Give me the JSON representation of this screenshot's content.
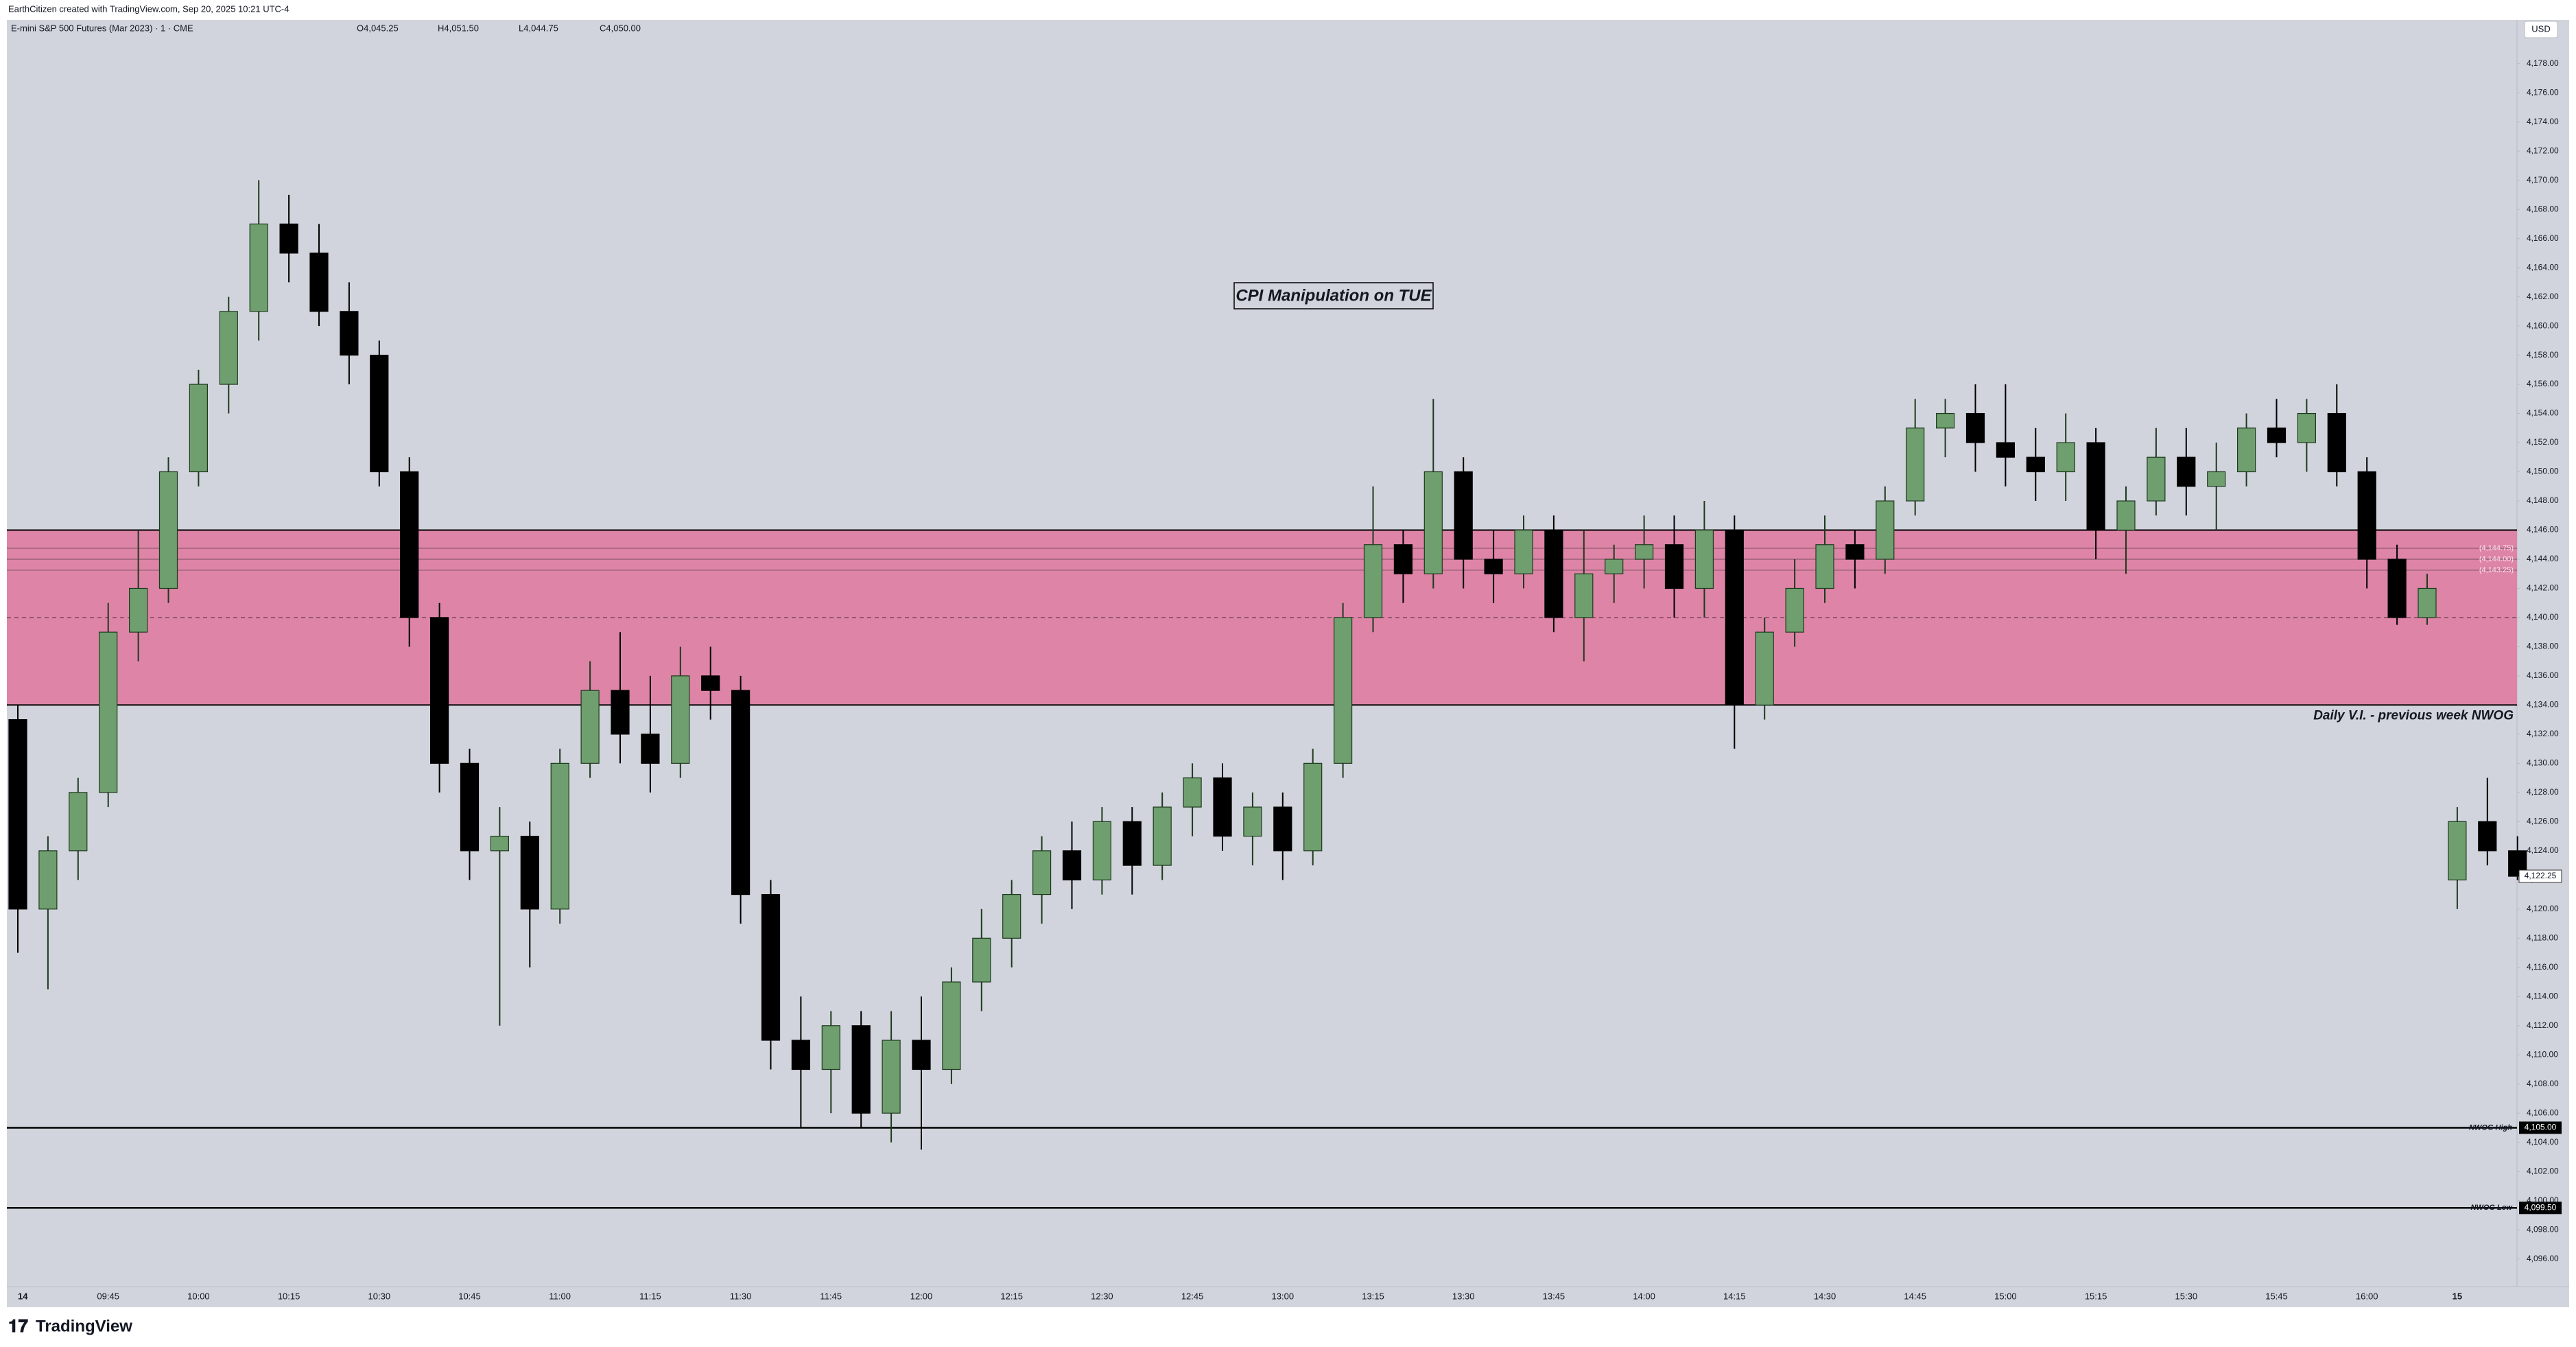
{
  "chart_data": {
    "type": "candlestick",
    "credit": "EarthCitizen created with TradingView.com, Sep 20, 2025 10:21 UTC-4",
    "symbol": "E-mini S&P 500 Futures (Mar 2023) · 1 · CME",
    "ohlc_header": [
      "O4,045.25",
      "H4,051.50",
      "L4,044.75",
      "C4,050.00"
    ],
    "currency": "USD",
    "brand": "TradingView",
    "x_labels": [
      "14",
      "09:45",
      "10:00",
      "10:15",
      "10:30",
      "10:45",
      "11:00",
      "11:15",
      "11:30",
      "11:45",
      "12:00",
      "12:15",
      "12:30",
      "12:45",
      "13:00",
      "13:15",
      "13:30",
      "13:45",
      "14:00",
      "14:15",
      "14:30",
      "14:45",
      "15:00",
      "15:15",
      "15:30",
      "15:45",
      "16:00",
      "15"
    ],
    "open": [
      4133,
      4120,
      4124,
      4128,
      4139,
      4142,
      4150,
      4156,
      4161,
      4167,
      4165,
      4161,
      4158,
      4150,
      4140,
      4130,
      4124,
      4125,
      4120,
      4130,
      4135,
      4132,
      4130,
      4136,
      4135,
      4121,
      4111,
      4109,
      4112,
      4106,
      4111,
      4109,
      4115,
      4118,
      4121,
      4124,
      4122,
      4126,
      4123,
      4127,
      4129,
      4125,
      4127,
      4124,
      4130,
      4140,
      4145,
      4143,
      4150,
      4144,
      4143,
      4146,
      4140,
      4143,
      4144,
      4145,
      4142,
      4146,
      4134,
      4139,
      4142,
      4145,
      4144,
      4148,
      4153,
      4154,
      4152,
      4151,
      4150,
      4152,
      4146,
      4148,
      4151,
      4149,
      4150,
      4153,
      4152,
      4154,
      4150,
      4144,
      4140,
      4122,
      4126,
      4124
    ],
    "high": [
      4134,
      4125,
      4129,
      4141,
      4146,
      4151,
      4157,
      4162,
      4170,
      4169,
      4167,
      4163,
      4159,
      4151,
      4141,
      4131,
      4127,
      4126,
      4131,
      4137,
      4139,
      4136,
      4138,
      4138,
      4136,
      4122,
      4114,
      4113,
      4113,
      4113,
      4114,
      4116,
      4120,
      4122,
      4125,
      4126,
      4127,
      4127,
      4128,
      4130,
      4130,
      4128,
      4128,
      4131,
      4141,
      4149,
      4146,
      4155,
      4151,
      4146,
      4147,
      4147,
      4146,
      4145,
      4147,
      4147,
      4148,
      4147,
      4140,
      4144,
      4147,
      4146,
      4149,
      4155,
      4155,
      4156,
      4156,
      4153,
      4154,
      4153,
      4149,
      4153,
      4153,
      4152,
      4154,
      4155,
      4155,
      4156,
      4151,
      4145,
      4143,
      4127,
      4129,
      4125
    ],
    "low": [
      4117,
      4114.5,
      4122,
      4127,
      4137,
      4141,
      4149,
      4154,
      4159,
      4163,
      4160,
      4156,
      4149,
      4138,
      4128,
      4122,
      4112,
      4116,
      4119,
      4129,
      4130,
      4128,
      4129,
      4133,
      4119,
      4109,
      4105,
      4106,
      4105,
      4104,
      4103.5,
      4108,
      4113,
      4116,
      4119,
      4120,
      4121,
      4121,
      4122,
      4125,
      4124,
      4123,
      4122,
      4123,
      4129,
      4139,
      4141,
      4142,
      4142,
      4141,
      4142,
      4139,
      4137,
      4141,
      4142,
      4140,
      4140,
      4131,
      4133,
      4138,
      4141,
      4142,
      4143,
      4147,
      4151,
      4150,
      4149,
      4148,
      4148,
      4144,
      4143,
      4147,
      4147,
      4146,
      4149,
      4151,
      4150,
      4149,
      4142,
      4139.5,
      4139.5,
      4120,
      4123,
      4122
    ],
    "close": [
      4120,
      4124,
      4128,
      4139,
      4142,
      4150,
      4156,
      4161,
      4167,
      4165,
      4161,
      4158,
      4150,
      4140,
      4130,
      4124,
      4125,
      4120,
      4130,
      4135,
      4132,
      4130,
      4136,
      4135,
      4121,
      4111,
      4109,
      4112,
      4106,
      4111,
      4109,
      4115,
      4118,
      4121,
      4124,
      4122,
      4126,
      4123,
      4127,
      4129,
      4125,
      4127,
      4124,
      4130,
      4140,
      4145,
      4143,
      4150,
      4144,
      4143,
      4146,
      4140,
      4143,
      4144,
      4145,
      4142,
      4146,
      4134,
      4139,
      4142,
      4145,
      4144,
      4148,
      4153,
      4154,
      4152,
      4151,
      4150,
      4152,
      4146,
      4148,
      4151,
      4149,
      4150,
      4153,
      4152,
      4154,
      4150,
      4144,
      4140,
      4142,
      4126,
      4124,
      4122.25
    ],
    "up_color": "#6f9f6f",
    "down_color": "#000000",
    "ylim": [
      4094.1,
      4181
    ],
    "yticks": [
      {
        "value": 4096,
        "label": "4,096.00"
      },
      {
        "value": 4098,
        "label": "4,098.00"
      },
      {
        "value": 4100,
        "label": "4,100.00"
      },
      {
        "value": 4102,
        "label": "4,102.00"
      },
      {
        "value": 4104,
        "label": "4,104.00"
      },
      {
        "value": 4106,
        "label": "4,106.00"
      },
      {
        "value": 4108,
        "label": "4,108.00"
      },
      {
        "value": 4110,
        "label": "4,110.00"
      },
      {
        "value": 4112,
        "label": "4,112.00"
      },
      {
        "value": 4114,
        "label": "4,114.00"
      },
      {
        "value": 4116,
        "label": "4,116.00"
      },
      {
        "value": 4118,
        "label": "4,118.00"
      },
      {
        "value": 4120,
        "label": "4,120.00"
      },
      {
        "value": 4122,
        "label": "4,122.00"
      },
      {
        "value": 4124,
        "label": "4,124.00"
      },
      {
        "value": 4126,
        "label": "4,126.00"
      },
      {
        "value": 4128,
        "label": "4,128.00"
      },
      {
        "value": 4130,
        "label": "4,130.00"
      },
      {
        "value": 4132,
        "label": "4,132.00"
      },
      {
        "value": 4134,
        "label": "4,134.00"
      },
      {
        "value": 4136,
        "label": "4,136.00"
      },
      {
        "value": 4138,
        "label": "4,138.00"
      },
      {
        "value": 4140,
        "label": "4,140.00"
      },
      {
        "value": 4142,
        "label": "4,142.00"
      },
      {
        "value": 4144,
        "label": "4,144.00"
      },
      {
        "value": 4146,
        "label": "4,146.00"
      },
      {
        "value": 4148,
        "label": "4,148.00"
      },
      {
        "value": 4150,
        "label": "4,150.00"
      },
      {
        "value": 4152,
        "label": "4,152.00"
      },
      {
        "value": 4154,
        "label": "4,154.00"
      },
      {
        "value": 4156,
        "label": "4,156.00"
      },
      {
        "value": 4158,
        "label": "4,158.00"
      },
      {
        "value": 4160,
        "label": "4,160.00"
      },
      {
        "value": 4162,
        "label": "4,162.00"
      },
      {
        "value": 4164,
        "label": "4,164.00"
      },
      {
        "value": 4166,
        "label": "4,166.00"
      },
      {
        "value": 4168,
        "label": "4,168.00"
      },
      {
        "value": 4170,
        "label": "4,170.00"
      },
      {
        "value": 4172,
        "label": "4,172.00"
      },
      {
        "value": 4174,
        "label": "4,174.00"
      },
      {
        "value": 4176,
        "label": "4,176.00"
      },
      {
        "value": 4178,
        "label": "4,178.00"
      }
    ],
    "grid": false,
    "zone": {
      "top": 4146,
      "bottom": 4134,
      "mid": 4140,
      "color": "#de84a6",
      "label": "Daily V.I. - previous week NWOG"
    },
    "zone_lines": [
      {
        "value": 4144.75,
        "label": "(4,144.75)"
      },
      {
        "value": 4144,
        "label": "(4,144.00)"
      },
      {
        "value": 4143.25,
        "label": "(4,143.25)"
      }
    ],
    "hlines": [
      {
        "name": "NWOG High",
        "value": 4105,
        "label": "4,105.00"
      },
      {
        "name": "NWOG Low",
        "value": 4099.5,
        "label": "4,099.50"
      }
    ],
    "last_price": {
      "value": 4122.25,
      "label": "4,122.25"
    },
    "annotation": "CPI Manipulation on TUE"
  }
}
